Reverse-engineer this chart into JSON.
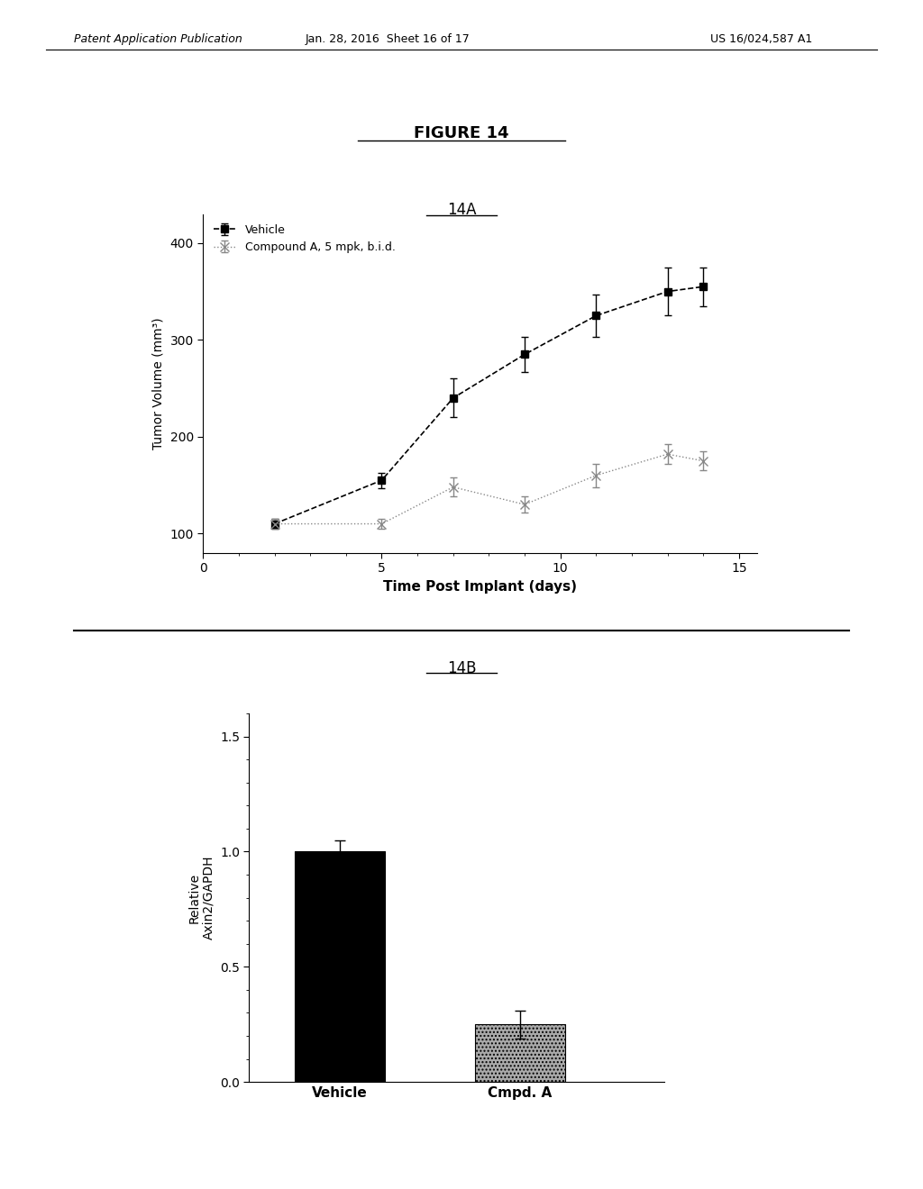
{
  "figure_title": "FIGURE 14",
  "panel_A_label": "14A",
  "panel_B_label": "14B",
  "lineA": {
    "label": "Vehicle",
    "x": [
      2,
      5,
      7,
      9,
      11,
      13,
      14
    ],
    "y": [
      110,
      155,
      240,
      285,
      325,
      350,
      355
    ],
    "yerr": [
      5,
      8,
      20,
      18,
      22,
      25,
      20
    ],
    "color": "black",
    "marker": "s",
    "linestyle": "--"
  },
  "lineB": {
    "label": "Compound A, 5 mpk, b.i.d.",
    "x": [
      2,
      5,
      7,
      9,
      11,
      13,
      14
    ],
    "y": [
      110,
      110,
      148,
      130,
      160,
      182,
      175
    ],
    "yerr": [
      5,
      5,
      10,
      8,
      12,
      10,
      10
    ],
    "color": "#888888",
    "marker": "x",
    "linestyle": ":"
  },
  "lineA_xlabel": "Time Post Implant (days)",
  "lineA_ylabel": "Tumor Volume (mm³)",
  "lineA_xlim": [
    0,
    15.5
  ],
  "lineA_ylim": [
    80,
    430
  ],
  "lineA_xticks": [
    0,
    5,
    10,
    15
  ],
  "lineA_yticks": [
    100,
    200,
    300,
    400
  ],
  "barB": {
    "categories": [
      "Vehicle",
      "Cmpd. A"
    ],
    "values": [
      1.0,
      0.25
    ],
    "yerr": [
      0.05,
      0.06
    ],
    "colors": [
      "black",
      "#aaaaaa"
    ],
    "hatch": [
      null,
      "...."
    ]
  },
  "barB_ylabel": "Relative\nAxin2/GAPDH",
  "barB_ylim": [
    0,
    1.6
  ],
  "barB_yticks": [
    0.0,
    0.5,
    1.0,
    1.5
  ],
  "header_left": "Patent Application Publication",
  "header_date": "Jan. 28, 2016  Sheet 16 of 17",
  "header_right": "US 16/024,587 A1",
  "bg_color": "#ffffff",
  "text_color": "#000000"
}
